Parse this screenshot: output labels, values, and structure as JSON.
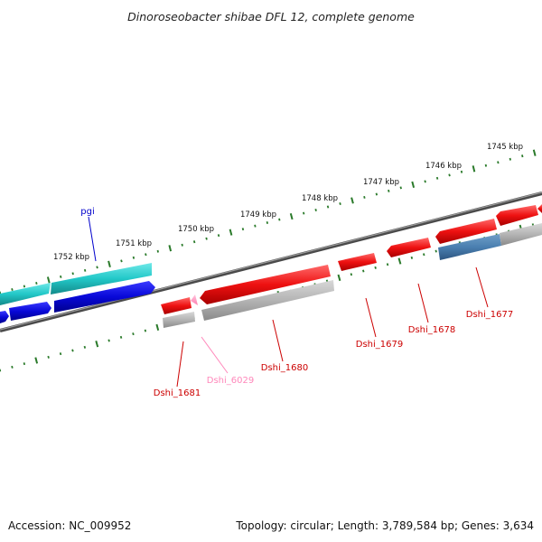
{
  "title": "Dinoroseobacter shibae DFL 12, complete genome",
  "footer": {
    "accession": "Accession: NC_009952",
    "summary": "Topology: circular; Length: 3,789,584 bp; Genes: 3,634"
  },
  "scale_labels": [
    "1745 kbp",
    "1746 kbp",
    "1747 kbp",
    "1748 kbp",
    "1749 kbp",
    "1750 kbp",
    "1751 kbp",
    "1752 kbp"
  ],
  "gene_labels": [
    {
      "name": "pgi",
      "color": "#0000cc"
    },
    {
      "name": "Dshi_1681",
      "color": "#cc0000"
    },
    {
      "name": "Dshi_6029",
      "color": "#ff88bb"
    },
    {
      "name": "Dshi_1680",
      "color": "#cc0000"
    },
    {
      "name": "Dshi_1679",
      "color": "#cc0000"
    },
    {
      "name": "Dshi_1678",
      "color": "#cc0000"
    },
    {
      "name": "Dshi_1677",
      "color": "#cc0000"
    }
  ],
  "colors": {
    "cds_forward": "#ff1a1a",
    "cds_gene_grey": "#b4b4b4",
    "cds_blue": "#0a0ad8",
    "cds_cyan": "#22c8c8",
    "cds_steel": "#4a7fb0",
    "tick": "#2a7a2a",
    "backbone": "#6a6a6a"
  }
}
